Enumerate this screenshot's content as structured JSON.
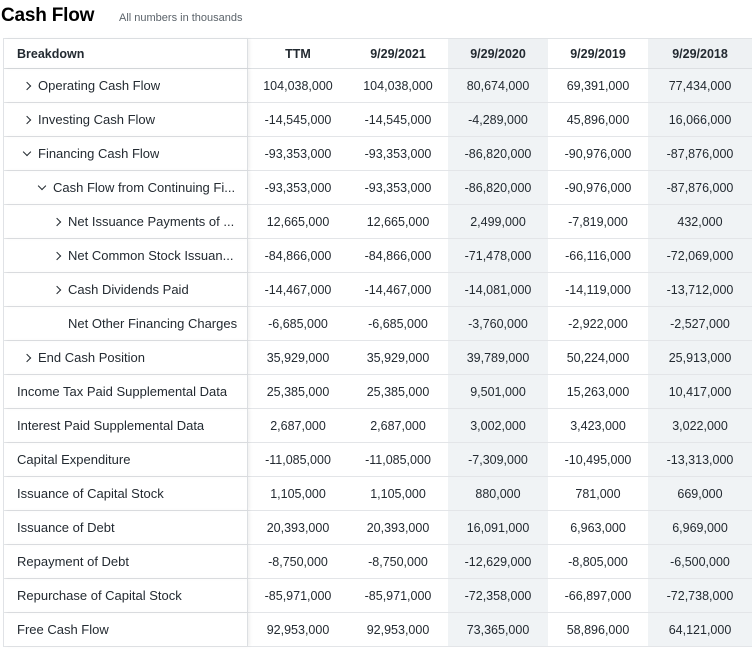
{
  "header": {
    "title": "Cash Flow",
    "subtitle": "All numbers in thousands"
  },
  "table": {
    "breakdown_label": "Breakdown",
    "columns": [
      "TTM",
      "9/29/2021",
      "9/29/2020",
      "9/29/2019",
      "9/29/2018"
    ],
    "rows": [
      {
        "label": "Operating Cash Flow",
        "expander": "right",
        "indent": 0,
        "values": [
          "104,038,000",
          "104,038,000",
          "80,674,000",
          "69,391,000",
          "77,434,000"
        ]
      },
      {
        "label": "Investing Cash Flow",
        "expander": "right",
        "indent": 0,
        "values": [
          "-14,545,000",
          "-14,545,000",
          "-4,289,000",
          "45,896,000",
          "16,066,000"
        ]
      },
      {
        "label": "Financing Cash Flow",
        "expander": "down",
        "indent": 0,
        "values": [
          "-93,353,000",
          "-93,353,000",
          "-86,820,000",
          "-90,976,000",
          "-87,876,000"
        ]
      },
      {
        "label": "Cash Flow from Continuing Fi...",
        "expander": "down",
        "indent": 1,
        "values": [
          "-93,353,000",
          "-93,353,000",
          "-86,820,000",
          "-90,976,000",
          "-87,876,000"
        ]
      },
      {
        "label": "Net Issuance Payments of ...",
        "expander": "right",
        "indent": 2,
        "values": [
          "12,665,000",
          "12,665,000",
          "2,499,000",
          "-7,819,000",
          "432,000"
        ]
      },
      {
        "label": "Net Common Stock Issuan...",
        "expander": "right",
        "indent": 2,
        "values": [
          "-84,866,000",
          "-84,866,000",
          "-71,478,000",
          "-66,116,000",
          "-72,069,000"
        ]
      },
      {
        "label": "Cash Dividends Paid",
        "expander": "right",
        "indent": 2,
        "values": [
          "-14,467,000",
          "-14,467,000",
          "-14,081,000",
          "-14,119,000",
          "-13,712,000"
        ]
      },
      {
        "label": "Net Other Financing Charges",
        "expander": "none",
        "indent": 2,
        "values": [
          "-6,685,000",
          "-6,685,000",
          "-3,760,000",
          "-2,922,000",
          "-2,527,000"
        ]
      },
      {
        "label": "End Cash Position",
        "expander": "right",
        "indent": 0,
        "values": [
          "35,929,000",
          "35,929,000",
          "39,789,000",
          "50,224,000",
          "25,913,000"
        ]
      },
      {
        "label": "Income Tax Paid Supplemental Data",
        "expander": "none",
        "indent": -1,
        "values": [
          "25,385,000",
          "25,385,000",
          "9,501,000",
          "15,263,000",
          "10,417,000"
        ]
      },
      {
        "label": "Interest Paid Supplemental Data",
        "expander": "none",
        "indent": -1,
        "values": [
          "2,687,000",
          "2,687,000",
          "3,002,000",
          "3,423,000",
          "3,022,000"
        ]
      },
      {
        "label": "Capital Expenditure",
        "expander": "none",
        "indent": -1,
        "values": [
          "-11,085,000",
          "-11,085,000",
          "-7,309,000",
          "-10,495,000",
          "-13,313,000"
        ]
      },
      {
        "label": "Issuance of Capital Stock",
        "expander": "none",
        "indent": -1,
        "values": [
          "1,105,000",
          "1,105,000",
          "880,000",
          "781,000",
          "669,000"
        ]
      },
      {
        "label": "Issuance of Debt",
        "expander": "none",
        "indent": -1,
        "values": [
          "20,393,000",
          "20,393,000",
          "16,091,000",
          "6,963,000",
          "6,969,000"
        ]
      },
      {
        "label": "Repayment of Debt",
        "expander": "none",
        "indent": -1,
        "values": [
          "-8,750,000",
          "-8,750,000",
          "-12,629,000",
          "-8,805,000",
          "-6,500,000"
        ]
      },
      {
        "label": "Repurchase of Capital Stock",
        "expander": "none",
        "indent": -1,
        "values": [
          "-85,971,000",
          "-85,971,000",
          "-72,358,000",
          "-66,897,000",
          "-72,738,000"
        ]
      },
      {
        "label": "Free Cash Flow",
        "expander": "none",
        "indent": -1,
        "values": [
          "92,953,000",
          "92,953,000",
          "73,365,000",
          "58,896,000",
          "64,121,000"
        ]
      }
    ]
  }
}
